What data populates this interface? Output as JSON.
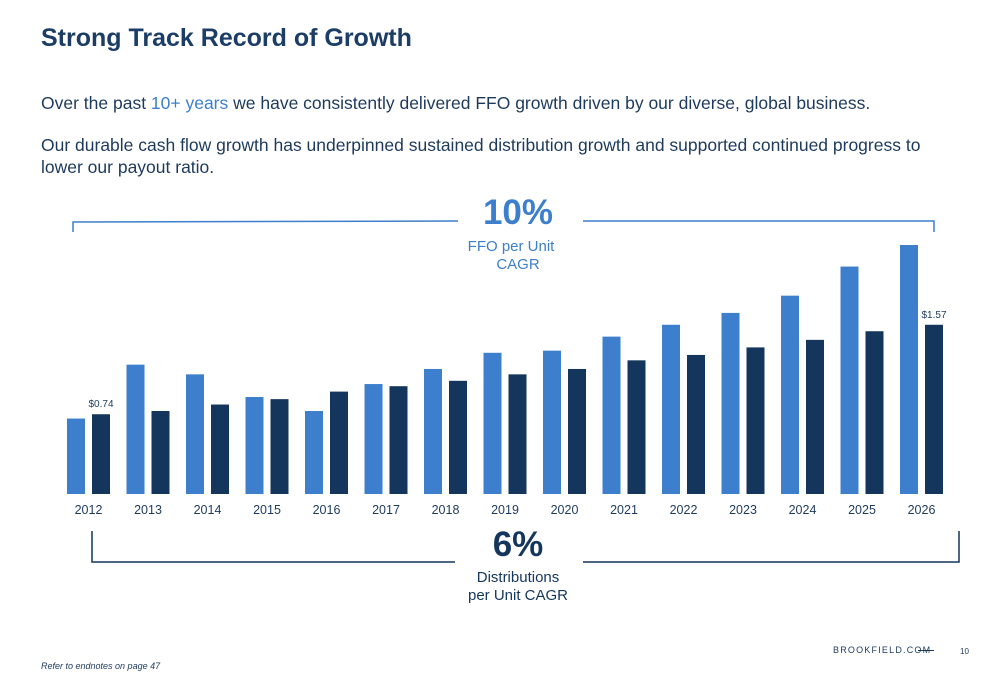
{
  "header": {
    "title": "Strong Track Record of Growth",
    "intro_pre": "Over the past ",
    "intro_accent": "10+ years",
    "intro_post": " we have consistently delivered FFO growth driven by our diverse, global business.",
    "para2": "Our durable cash flow growth has underpinned sustained distribution growth and supported continued progress to lower our payout ratio."
  },
  "colors": {
    "ffo": "#3d7fcc",
    "distributions": "#14365c",
    "text": "#1d3a5c"
  },
  "chart_data": {
    "type": "bar",
    "categories": [
      "2012",
      "2013",
      "2014",
      "2015",
      "2016",
      "2017",
      "2018",
      "2019",
      "2020",
      "2021",
      "2022",
      "2023",
      "2024",
      "2025",
      "2026"
    ],
    "series": [
      {
        "values": [
          0.7,
          1.2,
          1.11,
          0.9,
          0.77,
          1.02,
          1.16,
          1.31,
          1.33,
          1.46,
          1.57,
          1.68,
          1.84,
          2.11,
          2.31
        ]
      },
      {
        "values": [
          0.74,
          0.77,
          0.83,
          0.88,
          0.95,
          1.0,
          1.05,
          1.11,
          1.16,
          1.24,
          1.29,
          1.36,
          1.43,
          1.51,
          1.57
        ]
      }
    ],
    "data_labels": [
      {
        "series": 1,
        "index": 0,
        "text": "$0.74"
      },
      {
        "series": 1,
        "index": 14,
        "text": "$1.57"
      }
    ],
    "ylim": [
      0,
      2.31
    ],
    "annotations": {
      "ffo_cagr_value": "10%",
      "ffo_cagr_label_line1": "FFO per Unit",
      "ffo_cagr_label_line2": "CAGR",
      "dist_cagr_value": "6%",
      "dist_cagr_label_line1": "Distributions",
      "dist_cagr_label_line2": "per Unit CAGR"
    }
  },
  "footer": {
    "note": "Refer to endnotes on page 47",
    "brand": "BROOKFIELD.COM",
    "page_number": "10"
  }
}
